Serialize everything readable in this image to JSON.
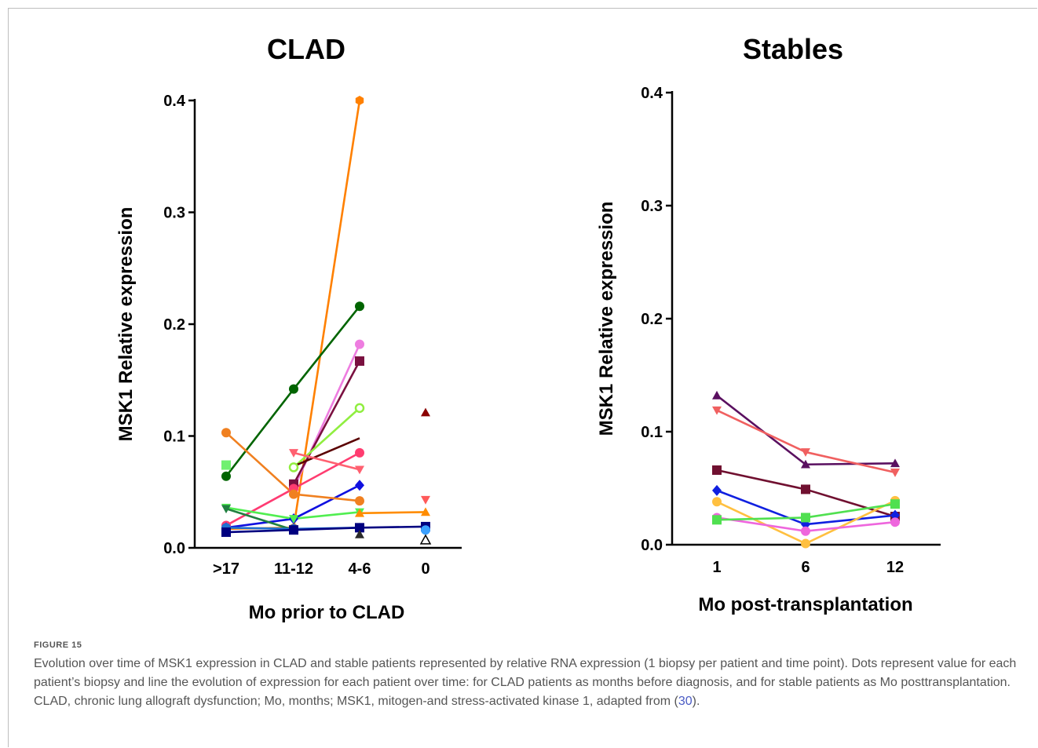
{
  "chart_data": [
    {
      "type": "line",
      "title": "CLAD",
      "xlabel": "Mo prior to CLAD",
      "ylabel": "MSK1 Relative expression",
      "categories": [
        ">17",
        "11-12",
        "4-6",
        "0"
      ],
      "ylim": [
        0,
        0.4
      ],
      "yticks": [
        "0.0",
        "0.1",
        "0.2",
        "0.3",
        "0.4"
      ],
      "series": [
        {
          "color": "#ff8000",
          "marker": "hexagon",
          "values": [
            0.017,
            0.018,
            0.4,
            null
          ]
        },
        {
          "color": "#006400",
          "marker": "circle",
          "values": [
            0.064,
            0.142,
            0.216,
            null
          ]
        },
        {
          "color": "#ee7de0",
          "marker": "circle",
          "values": [
            0.02,
            0.053,
            0.182,
            null
          ]
        },
        {
          "color": "#7a1040",
          "marker": "square",
          "values": [
            null,
            0.057,
            0.167,
            null
          ]
        },
        {
          "color": "#90ee40",
          "marker": "open-circle",
          "values": [
            null,
            0.072,
            0.125,
            null
          ]
        },
        {
          "color": "#5a0000",
          "marker": "none",
          "values": [
            null,
            0.073,
            0.098,
            null
          ]
        },
        {
          "color": "#ff3c70",
          "marker": "circle",
          "values": [
            0.02,
            0.053,
            0.085,
            null
          ]
        },
        {
          "color": "#ff6070",
          "marker": "triangle-down",
          "values": [
            null,
            0.085,
            0.07,
            null
          ]
        },
        {
          "color": "#1010e0",
          "marker": "diamond",
          "values": [
            0.018,
            0.026,
            0.056,
            null
          ]
        },
        {
          "color": "#f08020",
          "marker": "circle",
          "values": [
            0.103,
            0.048,
            0.042,
            null
          ]
        },
        {
          "color": "#70f070",
          "marker": "square",
          "values": [
            0.074,
            null,
            null,
            null
          ]
        },
        {
          "color": "#50ee50",
          "marker": "triangle-down",
          "values": [
            0.036,
            0.026,
            0.032,
            null
          ]
        },
        {
          "color": "#208040",
          "marker": "triangle-down",
          "values": [
            0.035,
            0.016,
            null,
            null
          ]
        },
        {
          "color": "#2070d0",
          "marker": "circle",
          "values": [
            0.018,
            0.017,
            0.018,
            null
          ]
        },
        {
          "color": "#000080",
          "marker": "square",
          "values": [
            0.014,
            0.016,
            0.018,
            0.019
          ]
        },
        {
          "color": "#2a2a2a",
          "marker": "triangle",
          "values": [
            null,
            null,
            0.012,
            null
          ]
        },
        {
          "color": "#ff8c00",
          "marker": "triangle",
          "values": [
            null,
            null,
            0.031,
            0.032
          ]
        },
        {
          "color": "#8b0000",
          "marker": "triangle",
          "values": [
            null,
            null,
            null,
            0.121
          ]
        },
        {
          "color": "#ff5a5a",
          "marker": "triangle-down",
          "values": [
            null,
            null,
            null,
            0.043
          ]
        },
        {
          "color": "#3aa0ff",
          "marker": "circle",
          "values": [
            null,
            null,
            null,
            0.016
          ]
        },
        {
          "color": "#000000",
          "marker": "open-triangle",
          "values": [
            null,
            null,
            null,
            0.007
          ]
        }
      ]
    },
    {
      "type": "line",
      "title": "Stables",
      "xlabel": "Mo post-transplantation",
      "ylabel": "MSK1 Relative expression",
      "categories": [
        "1",
        "6",
        "12"
      ],
      "ylim": [
        0,
        0.4
      ],
      "yticks": [
        "0.0",
        "0.1",
        "0.2",
        "0.3",
        "0.4"
      ],
      "series": [
        {
          "color": "#5a1060",
          "marker": "triangle",
          "values": [
            0.132,
            0.071,
            0.072
          ]
        },
        {
          "color": "#f06060",
          "marker": "triangle-down",
          "values": [
            0.119,
            0.082,
            0.064
          ]
        },
        {
          "color": "#701030",
          "marker": "square",
          "values": [
            0.066,
            0.049,
            0.025
          ]
        },
        {
          "color": "#1020e0",
          "marker": "diamond",
          "values": [
            0.048,
            0.018,
            0.026
          ]
        },
        {
          "color": "#ffc040",
          "marker": "circle",
          "values": [
            0.038,
            0.001,
            0.039
          ]
        },
        {
          "color": "#ee66dd",
          "marker": "circle",
          "values": [
            0.024,
            0.012,
            0.02
          ]
        },
        {
          "color": "#50e050",
          "marker": "square",
          "values": [
            0.022,
            0.024,
            0.036
          ]
        }
      ]
    }
  ],
  "caption": {
    "label": "FIGURE 15",
    "text": "Evolution over time of MSK1 expression in CLAD and stable patients represented by relative RNA expression (1 biopsy per patient and time point). Dots represent value for each patient’s biopsy and line the evolution of expression for each patient over time: for CLAD patients as months before diagnosis, and for stable patients as Mo posttransplantation. CLAD, chronic lung allograft dysfunction; Mo, months; MSK1, mitogen-and stress-activated kinase 1, adapted from (",
    "ref": "30",
    "tail": ")."
  }
}
